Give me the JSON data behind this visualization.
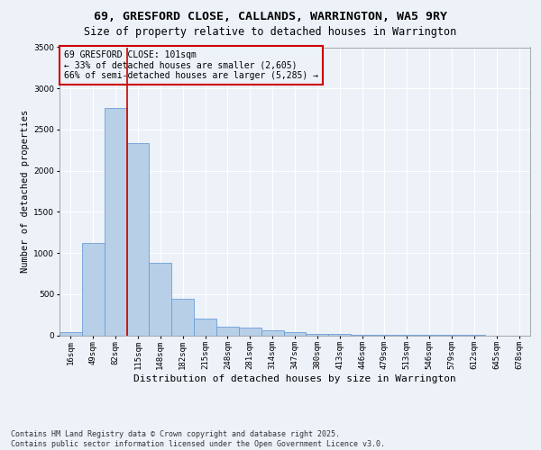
{
  "title1": "69, GRESFORD CLOSE, CALLANDS, WARRINGTON, WA5 9RY",
  "title2": "Size of property relative to detached houses in Warrington",
  "xlabel": "Distribution of detached houses by size in Warrington",
  "ylabel": "Number of detached properties",
  "categories": [
    "16sqm",
    "49sqm",
    "82sqm",
    "115sqm",
    "148sqm",
    "182sqm",
    "215sqm",
    "248sqm",
    "281sqm",
    "314sqm",
    "347sqm",
    "380sqm",
    "413sqm",
    "446sqm",
    "479sqm",
    "513sqm",
    "546sqm",
    "579sqm",
    "612sqm",
    "645sqm",
    "678sqm"
  ],
  "values": [
    40,
    1120,
    2760,
    2330,
    880,
    440,
    200,
    105,
    90,
    55,
    40,
    18,
    15,
    10,
    5,
    3,
    2,
    1,
    1,
    0,
    0
  ],
  "bar_color": "#b8cfe8",
  "bar_edge_color": "#6a9fd8",
  "vline_x_index": 2,
  "vline_color": "#cc0000",
  "ylim": [
    0,
    3500
  ],
  "yticks": [
    0,
    500,
    1000,
    1500,
    2000,
    2500,
    3000,
    3500
  ],
  "annotation_title": "69 GRESFORD CLOSE: 101sqm",
  "annotation_line1": "← 33% of detached houses are smaller (2,605)",
  "annotation_line2": "66% of semi-detached houses are larger (5,285) →",
  "annotation_box_color": "#cc0000",
  "background_color": "#edf2f9",
  "footer1": "Contains HM Land Registry data © Crown copyright and database right 2025.",
  "footer2": "Contains public sector information licensed under the Open Government Licence v3.0.",
  "title1_fontsize": 9.5,
  "title2_fontsize": 8.5,
  "xlabel_fontsize": 8,
  "ylabel_fontsize": 7.5,
  "tick_fontsize": 6.5,
  "annotation_fontsize": 7,
  "footer_fontsize": 6
}
